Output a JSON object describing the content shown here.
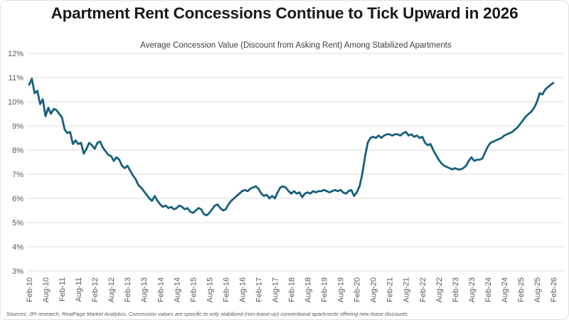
{
  "header": {
    "title": "Apartment Rent Concessions Continue to Tick Upward in 2026"
  },
  "footer": {
    "source": "Sources: JPI research, RealPage Market Analytics. Concession values are specific to only stabilized (non-lease-up) conventional apartments offering new lease discounts."
  },
  "chart_data": {
    "type": "line",
    "title": "Average Concession Value (Discount from Asking Rent) Among Stabilized Apartments",
    "xlabel": "",
    "ylabel": "",
    "ylim": [
      3,
      12
    ],
    "y_ticks": [
      "3%",
      "4%",
      "5%",
      "6%",
      "7%",
      "8%",
      "9%",
      "10%",
      "11%",
      "12%"
    ],
    "x_ticks": [
      "Feb-10",
      "Aug-10",
      "Feb-11",
      "Aug-11",
      "Feb-12",
      "Aug-12",
      "Feb-13",
      "Aug-13",
      "Feb-14",
      "Aug-14",
      "Feb-15",
      "Aug-15",
      "Feb-16",
      "Aug-16",
      "Feb-17",
      "Aug-17",
      "Feb-18",
      "Aug-18",
      "Feb-19",
      "Aug-19",
      "Feb-20",
      "Aug-20",
      "Feb-21",
      "Aug-21",
      "Feb-22",
      "Aug-22",
      "Feb-23",
      "Aug-23",
      "Feb-24",
      "Aug-24",
      "Feb-25",
      "Aug-25",
      "Feb-26"
    ],
    "x_start": "Feb-2010",
    "x_interval": "monthly",
    "grid": "horizontal",
    "legend": "none",
    "colors": {
      "line": "#17607C",
      "grid": "#DCDCDC",
      "axis_text": "#595959"
    },
    "series": [
      {
        "name": "Average Concession Value (% discount from asking rent)",
        "values": [
          10.7,
          10.95,
          10.35,
          10.45,
          9.9,
          10.1,
          9.4,
          9.75,
          9.5,
          9.7,
          9.65,
          9.5,
          9.35,
          8.85,
          8.7,
          8.75,
          8.25,
          8.4,
          8.25,
          8.3,
          7.85,
          8.05,
          8.3,
          8.2,
          8.05,
          8.3,
          8.35,
          8.1,
          7.95,
          7.8,
          7.75,
          7.55,
          7.7,
          7.6,
          7.35,
          7.25,
          7.35,
          7.15,
          6.95,
          6.8,
          6.55,
          6.45,
          6.3,
          6.15,
          6.0,
          5.9,
          6.1,
          5.9,
          5.75,
          5.65,
          5.7,
          5.6,
          5.65,
          5.55,
          5.6,
          5.7,
          5.65,
          5.55,
          5.6,
          5.45,
          5.4,
          5.5,
          5.6,
          5.55,
          5.35,
          5.3,
          5.4,
          5.55,
          5.7,
          5.75,
          5.6,
          5.5,
          5.55,
          5.75,
          5.9,
          6.0,
          6.1,
          6.2,
          6.3,
          6.35,
          6.3,
          6.4,
          6.45,
          6.5,
          6.4,
          6.2,
          6.1,
          6.15,
          6.0,
          6.1,
          6.0,
          6.25,
          6.45,
          6.5,
          6.45,
          6.3,
          6.2,
          6.3,
          6.2,
          6.25,
          6.05,
          6.2,
          6.25,
          6.2,
          6.3,
          6.25,
          6.3,
          6.3,
          6.35,
          6.3,
          6.25,
          6.3,
          6.35,
          6.3,
          6.35,
          6.25,
          6.2,
          6.3,
          6.35,
          6.1,
          6.25,
          6.5,
          7.0,
          7.7,
          8.3,
          8.5,
          8.55,
          8.5,
          8.6,
          8.5,
          8.6,
          8.65,
          8.65,
          8.6,
          8.65,
          8.65,
          8.6,
          8.7,
          8.75,
          8.6,
          8.65,
          8.55,
          8.6,
          8.5,
          8.55,
          8.3,
          8.2,
          8.25,
          8.0,
          7.8,
          7.6,
          7.45,
          7.35,
          7.3,
          7.25,
          7.2,
          7.25,
          7.2,
          7.2,
          7.25,
          7.35,
          7.55,
          7.7,
          7.55,
          7.6,
          7.6,
          7.65,
          7.9,
          8.15,
          8.3,
          8.35,
          8.4,
          8.45,
          8.5,
          8.6,
          8.65,
          8.7,
          8.75,
          8.85,
          8.95,
          9.1,
          9.25,
          9.4,
          9.5,
          9.6,
          9.75,
          10.0,
          10.35,
          10.3,
          10.5,
          10.6,
          10.7,
          10.78
        ]
      }
    ]
  }
}
